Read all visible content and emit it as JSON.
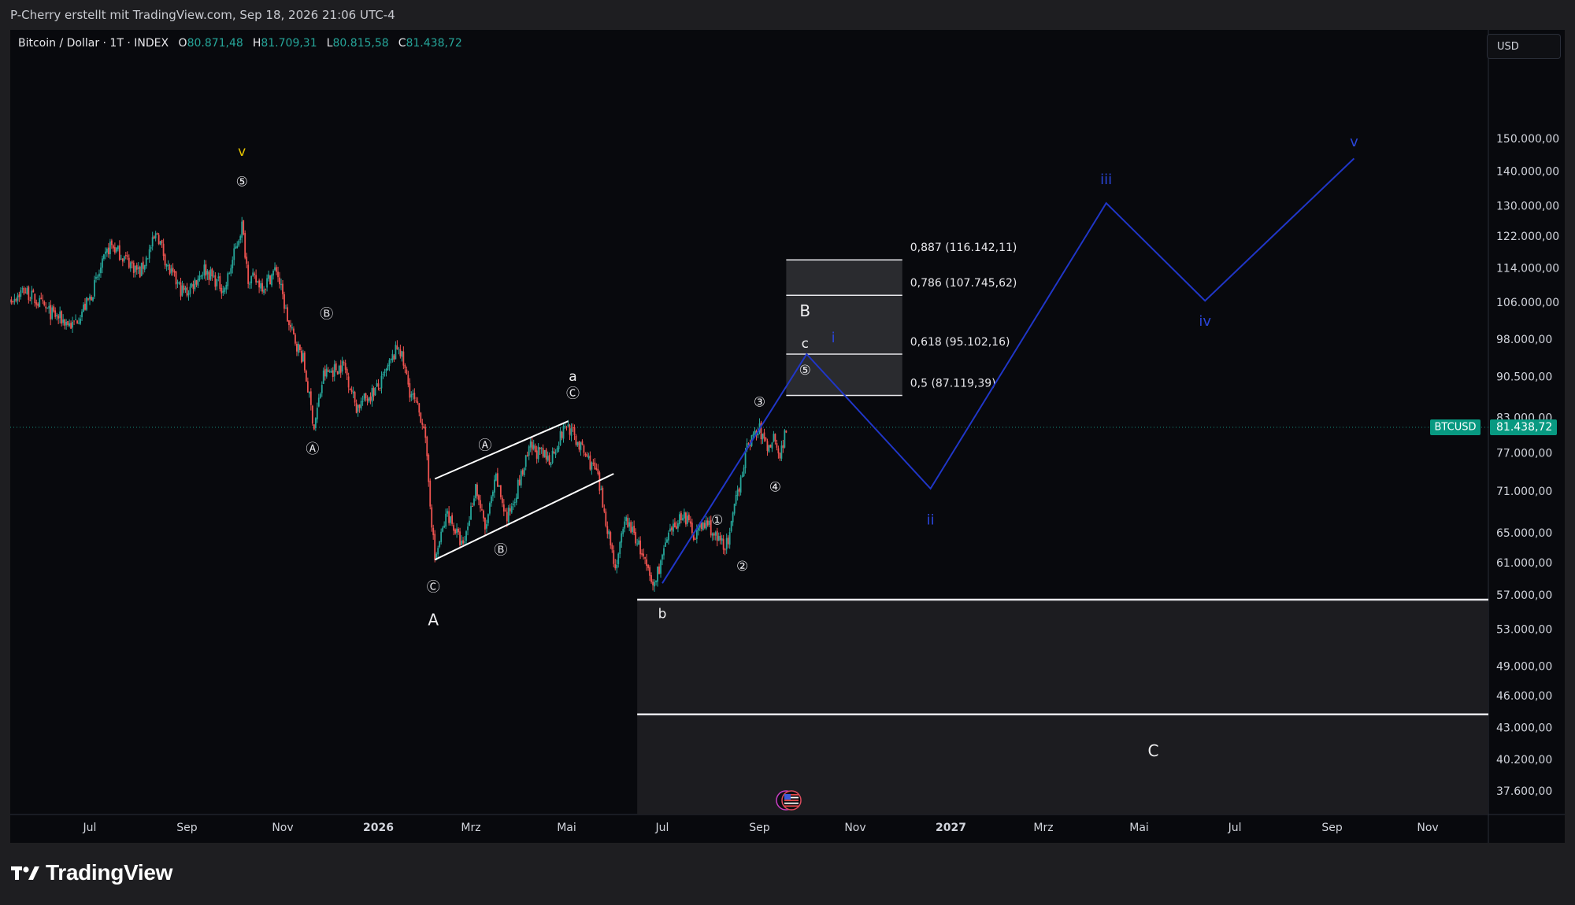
{
  "header": {
    "author_line": "P-Cherry erstellt mit TradingView.com, Sep 18, 2026 21:06 UTC-4"
  },
  "legend": {
    "symbol": "Bitcoin / Dollar · 1T · INDEX",
    "open_label": "O",
    "open": "80.871,48",
    "high_label": "H",
    "high": "81.709,31",
    "low_label": "L",
    "low": "80.815,58",
    "close_label": "C",
    "close": "81.438,72"
  },
  "currency": "USD",
  "logo_text": "TradingView",
  "colors": {
    "up": "#26a69a",
    "down": "#ef5350",
    "projection": "#2036c8",
    "price_tag": "#089981",
    "fib_zone": "#2a2b2f",
    "target_zone": "#1c1c20",
    "wave_v_top": "#e5c400"
  },
  "chart_data": {
    "type": "candlestick",
    "scale": "log",
    "symbol": "BTCUSD",
    "last_price": 81438.72,
    "last_price_label": "81.438,72",
    "ylim": [
      35000,
      165000
    ],
    "y_ticks": [
      {
        "v": 150000,
        "l": "150.000,00"
      },
      {
        "v": 140000,
        "l": "140.000,00"
      },
      {
        "v": 130000,
        "l": "130.000,00"
      },
      {
        "v": 122000,
        "l": "122.000,00"
      },
      {
        "v": 114000,
        "l": "114.000,00"
      },
      {
        "v": 106000,
        "l": "106.000,00"
      },
      {
        "v": 98000,
        "l": "98.000,00"
      },
      {
        "v": 90500,
        "l": "90.500,00"
      },
      {
        "v": 83000,
        "l": "83.000,00"
      },
      {
        "v": 77000,
        "l": "77.000,00"
      },
      {
        "v": 71000,
        "l": "71.000,00"
      },
      {
        "v": 65000,
        "l": "65.000,00"
      },
      {
        "v": 61000,
        "l": "61.000,00"
      },
      {
        "v": 57000,
        "l": "57.000,00"
      },
      {
        "v": 53000,
        "l": "53.000,00"
      },
      {
        "v": 49000,
        "l": "49.000,00"
      },
      {
        "v": 46000,
        "l": "46.000,00"
      },
      {
        "v": 43000,
        "l": "43.000,00"
      },
      {
        "v": 40200,
        "l": "40.200,00"
      },
      {
        "v": 37600,
        "l": "37.600,00"
      }
    ],
    "x_ticks": [
      {
        "d": "2025-07-01",
        "l": "Jul",
        "bold": false
      },
      {
        "d": "2025-09-01",
        "l": "Sep",
        "bold": false
      },
      {
        "d": "2025-11-01",
        "l": "Nov",
        "bold": false
      },
      {
        "d": "2026-01-01",
        "l": "2026",
        "bold": true
      },
      {
        "d": "2026-03-01",
        "l": "Mrz",
        "bold": false
      },
      {
        "d": "2026-05-01",
        "l": "Mai",
        "bold": false
      },
      {
        "d": "2026-07-01",
        "l": "Jul",
        "bold": false
      },
      {
        "d": "2026-09-01",
        "l": "Sep",
        "bold": false
      },
      {
        "d": "2026-11-01",
        "l": "Nov",
        "bold": false
      },
      {
        "d": "2027-01-01",
        "l": "2027",
        "bold": true
      },
      {
        "d": "2027-03-01",
        "l": "Mrz",
        "bold": false
      },
      {
        "d": "2027-05-01",
        "l": "Mai",
        "bold": false
      },
      {
        "d": "2027-07-01",
        "l": "Jul",
        "bold": false
      },
      {
        "d": "2027-09-01",
        "l": "Sep",
        "bold": false
      },
      {
        "d": "2027-11-01",
        "l": "Nov",
        "bold": false
      }
    ],
    "price_path": [
      [
        "2025-05-01",
        104000
      ],
      [
        "2025-05-20",
        109000
      ],
      [
        "2025-06-05",
        104000
      ],
      [
        "2025-06-20",
        101000
      ],
      [
        "2025-07-01",
        107000
      ],
      [
        "2025-07-14",
        120000
      ],
      [
        "2025-07-25",
        116000
      ],
      [
        "2025-08-02",
        113000
      ],
      [
        "2025-08-13",
        123000
      ],
      [
        "2025-08-20",
        114000
      ],
      [
        "2025-08-28",
        109000
      ],
      [
        "2025-09-01",
        108500
      ],
      [
        "2025-09-12",
        114000
      ],
      [
        "2025-09-25",
        109000
      ],
      [
        "2025-10-06",
        125000
      ],
      [
        "2025-10-10",
        112000
      ],
      [
        "2025-10-20",
        110000
      ],
      [
        "2025-10-28",
        114000
      ],
      [
        "2025-11-05",
        101000
      ],
      [
        "2025-11-14",
        94000
      ],
      [
        "2025-11-21",
        81500
      ],
      [
        "2025-11-27",
        91000
      ],
      [
        "2025-12-10",
        93000
      ],
      [
        "2025-12-18",
        85000
      ],
      [
        "2026-01-02",
        89000
      ],
      [
        "2026-01-14",
        97000
      ],
      [
        "2026-01-21",
        88000
      ],
      [
        "2026-01-30",
        82000
      ],
      [
        "2026-02-06",
        61500
      ],
      [
        "2026-02-14",
        68000
      ],
      [
        "2026-02-24",
        63000
      ],
      [
        "2026-03-04",
        72000
      ],
      [
        "2026-03-10",
        65500
      ],
      [
        "2026-03-17",
        73000
      ],
      [
        "2026-03-24",
        67000
      ],
      [
        "2026-04-08",
        78000
      ],
      [
        "2026-04-20",
        76000
      ],
      [
        "2026-05-01",
        82000
      ],
      [
        "2026-05-10",
        78000
      ],
      [
        "2026-05-20",
        74000
      ],
      [
        "2026-05-26",
        67000
      ],
      [
        "2026-06-01",
        60500
      ],
      [
        "2026-06-08",
        67000
      ],
      [
        "2026-06-15",
        64000
      ],
      [
        "2026-06-25",
        58000
      ],
      [
        "2026-07-04",
        64000
      ],
      [
        "2026-07-14",
        68000
      ],
      [
        "2026-07-21",
        65000
      ],
      [
        "2026-07-30",
        66500
      ],
      [
        "2026-08-05",
        64000
      ],
      [
        "2026-08-12",
        63500
      ],
      [
        "2026-08-18",
        71000
      ],
      [
        "2026-08-25",
        79000
      ],
      [
        "2026-09-01",
        81000
      ],
      [
        "2026-09-06",
        78000
      ],
      [
        "2026-09-11",
        80000
      ],
      [
        "2026-09-14",
        76500
      ],
      [
        "2026-09-18",
        81438
      ]
    ],
    "channel": [
      {
        "p1": [
          "2026-02-06",
          73000
        ],
        "p2": [
          "2026-05-02",
          82500
        ]
      },
      {
        "p1": [
          "2026-02-06",
          61500
        ],
        "p2": [
          "2026-05-31",
          73800
        ]
      }
    ],
    "projection": [
      [
        "2026-07-01",
        58500
      ],
      [
        "2026-10-01",
        95102
      ],
      [
        "2026-12-19",
        71500
      ],
      [
        "2027-04-10",
        131000
      ],
      [
        "2027-06-12",
        106500
      ],
      [
        "2027-09-15",
        144000
      ]
    ],
    "fib_zone": {
      "x1": "2026-09-18",
      "x2": "2026-12-01",
      "top": 116142,
      "bottom": 87119
    },
    "fib_levels": [
      {
        "ratio": "0,887",
        "price": 116142.11,
        "label": "0,887 (116.142,11)"
      },
      {
        "ratio": "0,786",
        "price": 107745.62,
        "label": "0,786 (107.745,62)"
      },
      {
        "ratio": "0,618",
        "price": 95102.16,
        "label": "0,618 (95.102,16)"
      },
      {
        "ratio": "0,5",
        "price": 87119.39,
        "label": "0,5 (87.119,39)"
      }
    ],
    "target_zone": {
      "x1": "2026-06-15",
      "top": 56500,
      "mid": 44300
    },
    "wave_labels": [
      {
        "t": "v",
        "d": "2025-10-06",
        "v": 146000,
        "kind": "letter",
        "color": "#e5c400"
      },
      {
        "t": "⑤",
        "d": "2025-10-06",
        "v": 137000,
        "kind": "circle"
      },
      {
        "t": "Ⓑ",
        "d": "2025-11-29",
        "v": 103500,
        "kind": "circle"
      },
      {
        "t": "Ⓐ",
        "d": "2025-11-20",
        "v": 77700,
        "kind": "circle"
      },
      {
        "t": "Ⓐ",
        "d": "2026-03-10",
        "v": 78300,
        "kind": "circle"
      },
      {
        "t": "Ⓑ",
        "d": "2026-03-20",
        "v": 62700,
        "kind": "circle"
      },
      {
        "t": "Ⓒ",
        "d": "2026-02-05",
        "v": 58000,
        "kind": "circle"
      },
      {
        "t": "A",
        "d": "2026-02-05",
        "v": 54000,
        "kind": "big"
      },
      {
        "t": "a",
        "d": "2026-05-05",
        "v": 90600,
        "kind": "letter"
      },
      {
        "t": "Ⓒ",
        "d": "2026-05-05",
        "v": 87400,
        "kind": "circle"
      },
      {
        "t": "b",
        "d": "2026-07-01",
        "v": 54800,
        "kind": "letter"
      },
      {
        "t": "①",
        "d": "2026-08-05",
        "v": 66800,
        "kind": "circle"
      },
      {
        "t": "②",
        "d": "2026-08-21",
        "v": 60600,
        "kind": "circle"
      },
      {
        "t": "③",
        "d": "2026-09-01",
        "v": 85800,
        "kind": "circle"
      },
      {
        "t": "④",
        "d": "2026-09-11",
        "v": 71700,
        "kind": "circle"
      },
      {
        "t": "⑤",
        "d": "2026-09-30",
        "v": 91800,
        "kind": "circle"
      },
      {
        "t": "B",
        "d": "2026-09-30",
        "v": 104000,
        "kind": "big"
      },
      {
        "t": "c",
        "d": "2026-09-30",
        "v": 97200,
        "kind": "letter"
      },
      {
        "t": "i",
        "d": "2026-10-18",
        "v": 98300,
        "kind": "blue"
      },
      {
        "t": "ii",
        "d": "2026-12-19",
        "v": 66800,
        "kind": "blue"
      },
      {
        "t": "iii",
        "d": "2027-04-10",
        "v": 137500,
        "kind": "blue"
      },
      {
        "t": "iv",
        "d": "2027-06-12",
        "v": 101800,
        "kind": "blue"
      },
      {
        "t": "v",
        "d": "2027-09-15",
        "v": 149000,
        "kind": "blue"
      },
      {
        "t": "C",
        "d": "2027-05-10",
        "v": 40900,
        "kind": "big"
      }
    ]
  }
}
